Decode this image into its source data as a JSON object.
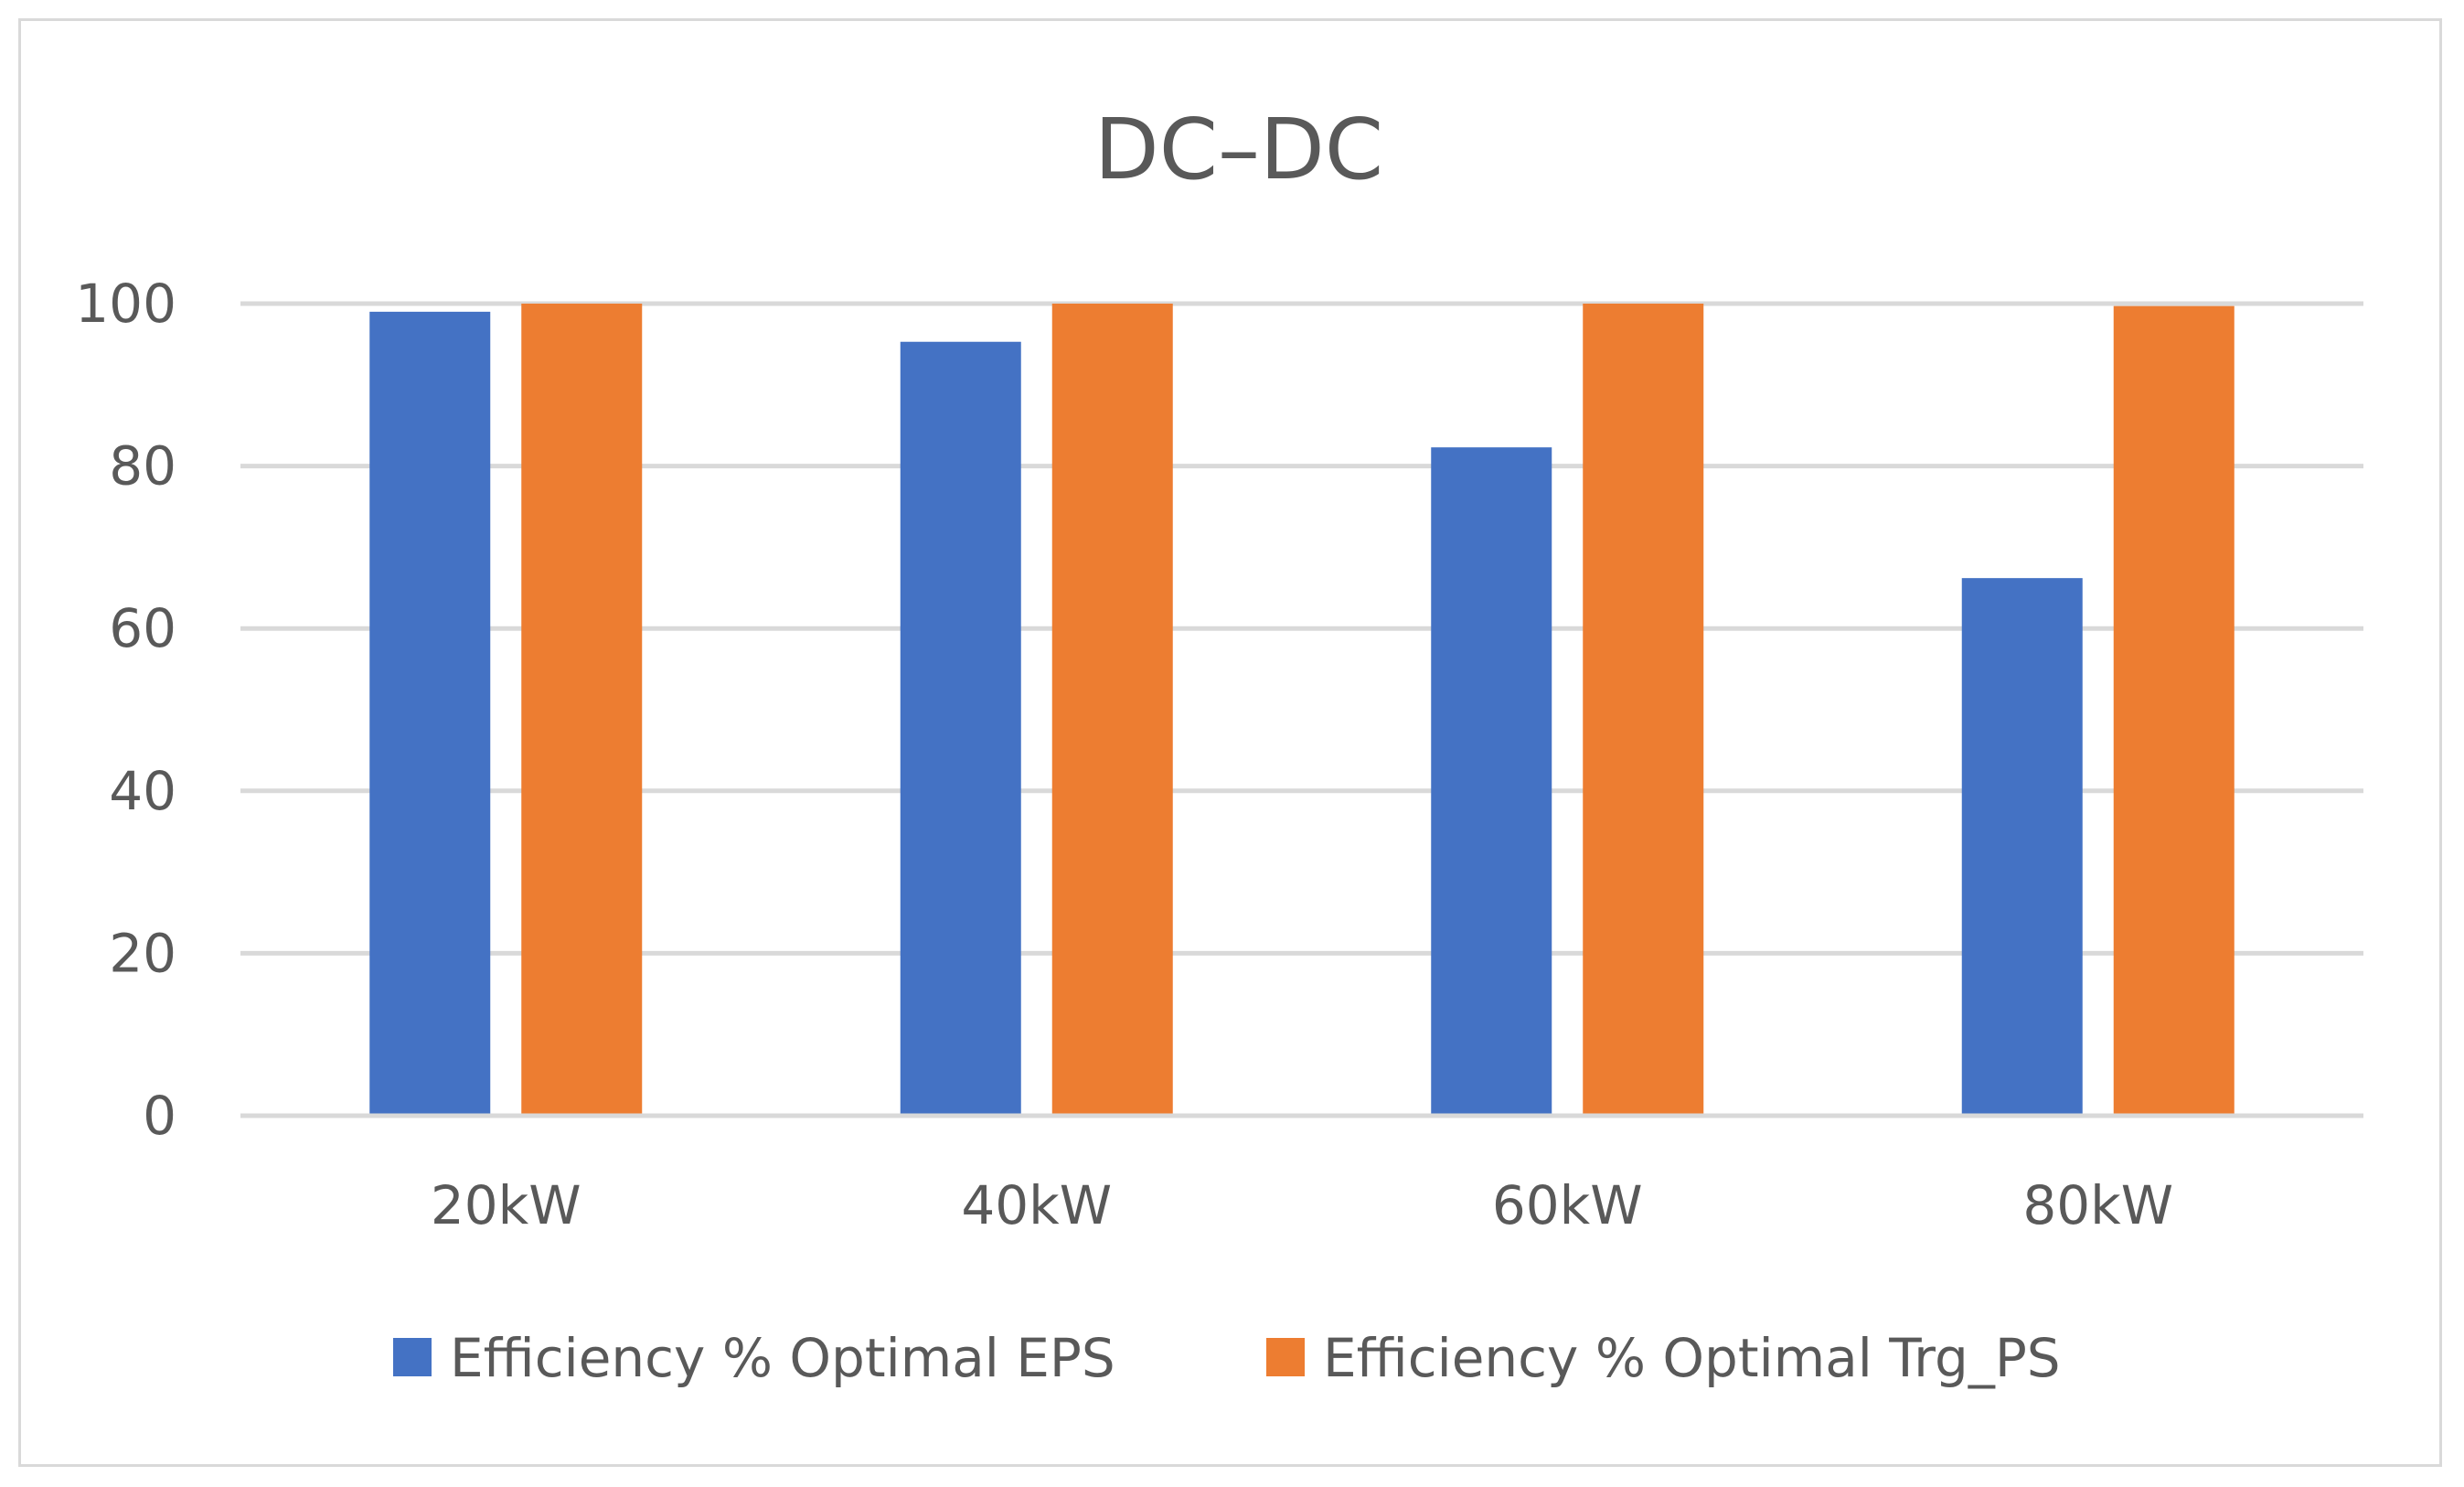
{
  "chart_data": {
    "type": "bar",
    "title": "DC–DC",
    "categories": [
      "20kW",
      "40kW",
      "60kW",
      "80kW"
    ],
    "series": [
      {
        "name": "Efficiency % Optimal EPS",
        "values": [
          99,
          95.3,
          82.3,
          66.2
        ],
        "color": "#4472C4"
      },
      {
        "name": "Efficiency % Optimal Trg_PS",
        "values": [
          100,
          100,
          100,
          99.7
        ],
        "color": "#ED7D31"
      }
    ],
    "ylim": [
      0,
      100
    ],
    "yticks": [
      0,
      20,
      40,
      60,
      80,
      100
    ],
    "grid": true,
    "legend_position": "bottom"
  }
}
